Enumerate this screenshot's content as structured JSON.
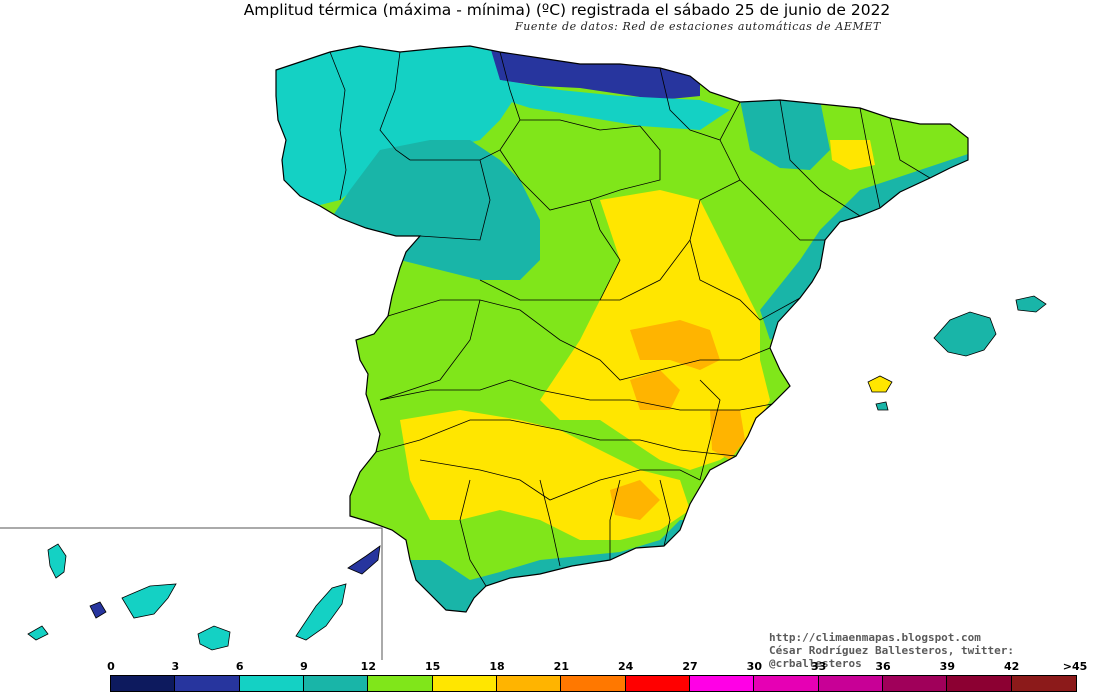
{
  "title": "Amplitud térmica (máxima - mínima) (ºC) registrada el sábado 25 de junio de 2022",
  "source": "Fuente de datos: Red de estaciones automáticas de AEMET",
  "credit": {
    "url": "http://climaenmapas.blogspot.com",
    "author": "César Rodríguez Ballesteros, twitter: @crballesteros"
  },
  "legend": {
    "ticks": [
      "0",
      "3",
      "6",
      "9",
      "12",
      "15",
      "18",
      "21",
      "24",
      "27",
      "30",
      "33",
      "36",
      "39",
      "42",
      ">45"
    ],
    "colors": [
      "#0d1a5e",
      "#27359e",
      "#14d1c4",
      "#19b5a8",
      "#80e61a",
      "#ffe600",
      "#ffb400",
      "#ff7800",
      "#ff0000",
      "#ff00e6",
      "#e600b4",
      "#c80096",
      "#a0005a",
      "#8c0032",
      "#8c1a1a"
    ]
  },
  "colors": {
    "very_low": "#27359e",
    "low_a": "#14d1c4",
    "low_b": "#19b5a8",
    "mid": "#80e61a",
    "high": "#ffe600",
    "higher": "#ffb400",
    "peak": "#ff9a00",
    "boundaries": "#000000",
    "inset_frame": "#555555"
  }
}
